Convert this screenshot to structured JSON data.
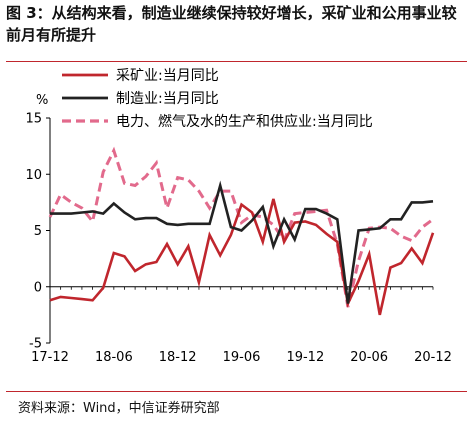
{
  "title": "图 3：从结构来看，制造业继续保持较好增长，采矿业和公用事业较前月有所提升",
  "source": "资料来源：Wind，中信证券研究部",
  "chart_data": {
    "type": "line",
    "title": "",
    "xlabel": "",
    "ylabel": "%",
    "ylim": [
      -5,
      15
    ],
    "yticks": [
      -5,
      0,
      5,
      10,
      15
    ],
    "xtick_labels": [
      "17-12",
      "18-06",
      "18-12",
      "19-06",
      "19-12",
      "20-06",
      "20-12"
    ],
    "xtick_index": [
      0,
      6,
      12,
      18,
      24,
      30,
      36
    ],
    "legend_position": "top",
    "grid": false,
    "x": [
      "17-12",
      "18-01",
      "18-02",
      "18-03",
      "18-04",
      "18-05",
      "18-06",
      "18-07",
      "18-08",
      "18-09",
      "18-10",
      "18-11",
      "18-12",
      "19-01",
      "19-02",
      "19-03",
      "19-04",
      "19-05",
      "19-06",
      "19-07",
      "19-08",
      "19-09",
      "19-10",
      "19-11",
      "19-12",
      "20-01",
      "20-02",
      "20-03",
      "20-04",
      "20-05",
      "20-06",
      "20-07",
      "20-08",
      "20-09",
      "20-10",
      "20-11",
      "20-12"
    ],
    "series": [
      {
        "name": "采矿业:当月同比",
        "color": "#c0262d",
        "dash": "solid",
        "values": [
          -1.2,
          -0.9,
          -1.0,
          -1.1,
          -1.2,
          -0.1,
          3.0,
          2.7,
          1.4,
          2.0,
          2.2,
          3.8,
          2.0,
          3.6,
          0.4,
          4.6,
          2.8,
          4.6,
          7.3,
          6.6,
          4.0,
          7.8,
          4.0,
          5.7,
          5.8,
          5.5,
          4.7,
          4.0,
          -1.5,
          0.5,
          2.9,
          -2.5,
          1.7,
          2.1,
          3.4,
          2.1,
          4.8
        ]
      },
      {
        "name": "制造业:当月同比",
        "color": "#222222",
        "dash": "solid",
        "values": [
          6.5,
          6.5,
          6.5,
          6.6,
          6.7,
          6.5,
          7.4,
          6.6,
          6.0,
          6.1,
          6.1,
          5.6,
          5.5,
          5.6,
          5.6,
          5.6,
          9.0,
          5.3,
          5.0,
          5.9,
          7.1,
          3.6,
          6.0,
          4.2,
          6.9,
          6.9,
          6.5,
          6.0,
          -1.5,
          5.0,
          5.1,
          5.2,
          6.0,
          6.0,
          7.5,
          7.5,
          7.6
        ]
      },
      {
        "name": "电力、燃气及水的生产和供应业:当月同比",
        "color": "#e26a8c",
        "dash": "dashed",
        "values": [
          6.2,
          8.2,
          7.5,
          7.0,
          5.8,
          10.2,
          12.1,
          9.2,
          9.0,
          9.8,
          11.0,
          7.0,
          9.7,
          9.5,
          8.5,
          7.0,
          8.5,
          8.5,
          5.7,
          6.4,
          6.2,
          5.5,
          4.1,
          6.5,
          6.6,
          6.7,
          6.8,
          3.8,
          -1.8,
          2.3,
          5.2,
          5.3,
          5.2,
          4.5,
          4.1,
          5.3,
          6.0
        ]
      }
    ]
  }
}
